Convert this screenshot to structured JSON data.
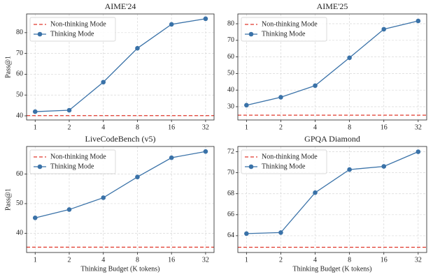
{
  "chart_data": [
    {
      "type": "line",
      "title": "AIME'24",
      "ylabel": "Pass@1",
      "x": [
        1,
        2,
        4,
        8,
        16,
        32
      ],
      "xscale": "log",
      "xlim": [
        0.84,
        38
      ],
      "xticks": [
        1,
        2,
        4,
        8,
        16,
        32
      ],
      "ylim": [
        38,
        89
      ],
      "yticks": [
        40,
        50,
        60,
        70,
        80
      ],
      "grid": true,
      "legend": "upper left",
      "series": [
        {
          "name": "Non-thinking Mode",
          "color": "#e0382c",
          "style": "dashed",
          "value": 40.1
        },
        {
          "name": "Thinking Mode",
          "color": "#3a72a8",
          "marker": "circle",
          "values": [
            42,
            42.7,
            56.2,
            72.5,
            84,
            86.7
          ]
        }
      ]
    },
    {
      "type": "line",
      "title": "AIME'25",
      "x": [
        1,
        2,
        4,
        8,
        16,
        32
      ],
      "xscale": "log",
      "xlim": [
        0.84,
        38
      ],
      "xticks": [
        1,
        2,
        4,
        8,
        16,
        32
      ],
      "ylim": [
        22,
        85.9
      ],
      "yticks": [
        30,
        40,
        50,
        60,
        70,
        80
      ],
      "grid": true,
      "legend": "upper left",
      "series": [
        {
          "name": "Non-thinking Mode",
          "color": "#e0382c",
          "style": "dashed",
          "value": 24.9
        },
        {
          "name": "Thinking Mode",
          "color": "#3a72a8",
          "marker": "circle",
          "values": [
            30.9,
            35.7,
            42.7,
            59.5,
            76.7,
            81.7
          ]
        }
      ]
    },
    {
      "type": "line",
      "title": "LiveCodeBench (v5)",
      "ylabel": "Pass@1",
      "xlabel": "Thinking Budget (K tokens)",
      "x": [
        1,
        2,
        4,
        8,
        16,
        32
      ],
      "xscale": "log",
      "xlim": [
        0.84,
        38
      ],
      "xticks": [
        1,
        2,
        4,
        8,
        16,
        32
      ],
      "ylim": [
        33.5,
        69.3
      ],
      "yticks": [
        40,
        50,
        60
      ],
      "grid": true,
      "legend": "upper left",
      "series": [
        {
          "name": "Non-thinking Mode",
          "color": "#e0382c",
          "style": "dashed",
          "value": 35.3
        },
        {
          "name": "Thinking Mode",
          "color": "#3a72a8",
          "marker": "circle",
          "values": [
            45.2,
            48,
            52,
            59,
            65.5,
            67.6
          ]
        }
      ]
    },
    {
      "type": "line",
      "title": "GPQA Diamond",
      "xlabel": "Thinking Budget (K tokens)",
      "x": [
        1,
        2,
        4,
        8,
        16,
        32
      ],
      "xscale": "log",
      "xlim": [
        0.84,
        38
      ],
      "xticks": [
        1,
        2,
        4,
        8,
        16,
        32
      ],
      "ylim": [
        62.4,
        72.5
      ],
      "yticks": [
        64,
        66,
        68,
        70,
        72
      ],
      "grid": true,
      "legend": "upper left",
      "series": [
        {
          "name": "Non-thinking Mode",
          "color": "#e0382c",
          "style": "dashed",
          "value": 62.9
        },
        {
          "name": "Thinking Mode",
          "color": "#3a72a8",
          "marker": "circle",
          "values": [
            64.2,
            64.3,
            68.1,
            70.3,
            70.6,
            72
          ]
        }
      ]
    }
  ]
}
